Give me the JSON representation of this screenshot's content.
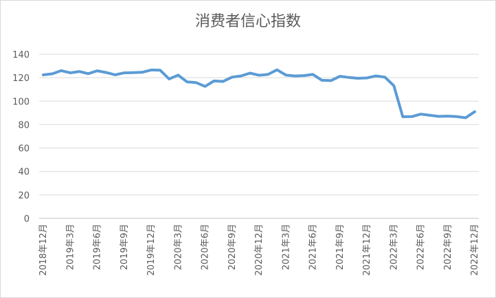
{
  "chart_data": {
    "type": "line",
    "title": "消费者信心指数",
    "categories": [
      "2018年12月",
      null,
      null,
      "2019年3月",
      null,
      null,
      "2019年6月",
      null,
      null,
      "2019年9月",
      null,
      null,
      "2019年12月",
      null,
      null,
      "2020年3月",
      null,
      null,
      "2020年6月",
      null,
      null,
      "2020年9月",
      null,
      null,
      "2020年12月",
      null,
      null,
      "2021年3月",
      null,
      null,
      "2021年6月",
      null,
      null,
      "2021年9月",
      null,
      null,
      "2021年12月",
      null,
      null,
      "2022年3月",
      null,
      null,
      "2022年6月",
      null,
      null,
      "2022年9月",
      null,
      null,
      "2022年12月"
    ],
    "series": [
      {
        "name": "消费者信心指数",
        "color": "#5b9bd5",
        "values": [
          122.4,
          123.3,
          126.0,
          124.1,
          125.3,
          123.4,
          125.9,
          124.4,
          122.4,
          124.1,
          124.3,
          124.6,
          126.6,
          126.4,
          118.9,
          122.2,
          116.4,
          115.8,
          112.6,
          117.2,
          116.8,
          120.5,
          121.5,
          123.9,
          122.1,
          122.8,
          126.7,
          122.2,
          121.5,
          121.8,
          122.8,
          117.8,
          117.5,
          121.2,
          120.2,
          119.5,
          119.8,
          121.5,
          120.5,
          113.2,
          86.7,
          86.8,
          88.9,
          87.9,
          87.0,
          87.2,
          86.8,
          85.8,
          91.0
        ]
      }
    ],
    "ylim": [
      0,
      140
    ],
    "yticks": [
      0,
      20,
      40,
      60,
      80,
      100,
      120,
      140
    ],
    "grid": true
  }
}
